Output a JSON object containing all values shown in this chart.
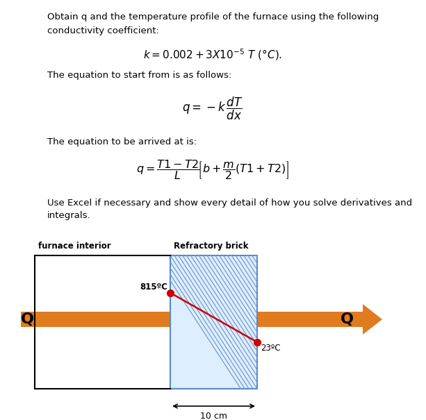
{
  "title_line1": "Obtain q and the temperature profile of the furnace using the following",
  "title_line2": "conductivity coefficient:",
  "eq_start_text": "The equation to start from is as follows:",
  "eq_arrive_text": "The equation to be arrived at is:",
  "use_excel_text1": "Use Excel if necessary and show every detail of how you solve derivatives and",
  "use_excel_text2": "integrals.",
  "label_furnace": "furnace interior",
  "label_brick": "Refractory brick",
  "label_Q_left": "Q",
  "label_Q_right": "Q",
  "label_T1": "815ºC",
  "label_T2": "23ºC",
  "label_width": "10 cm",
  "bg_color": "#ffffff",
  "text_color": "#000000",
  "arrow_color": "#E07B20",
  "brick_hatch_color": "#7799cc",
  "brick_face_color": "#ddeeff",
  "brick_border_color": "#5588cc",
  "red_dot_color": "#cc0000",
  "red_line_color": "#cc0000"
}
